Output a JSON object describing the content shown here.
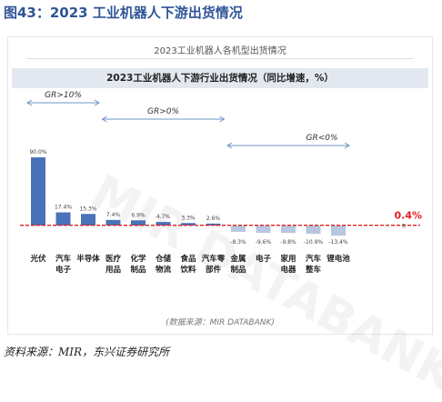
{
  "figure_title": "图43：2023 工业机器人下游出货情况",
  "card_title": "2023工业机器人各机型出货情况",
  "inner_source": "(数据来源：MIR DATABANK)",
  "watermark": "MIR DATABANK",
  "source": "资料来源：MIR，东兴证券研究所",
  "chart_data": {
    "type": "bar",
    "title": "2023工业机器人下游行业出货情况（同比增速，%）",
    "categories": [
      [
        "光伏"
      ],
      [
        "汽车",
        "电子"
      ],
      [
        "半导体"
      ],
      [
        "医疗",
        "用品"
      ],
      [
        "化学",
        "制品"
      ],
      [
        "仓储",
        "物流"
      ],
      [
        "食品",
        "饮料"
      ],
      [
        "汽车零",
        "部件"
      ],
      [
        "金属",
        "制品"
      ],
      [
        "电子"
      ],
      [
        "家用",
        "电器"
      ],
      [
        "汽车",
        "整车"
      ],
      [
        "锂电池"
      ]
    ],
    "values": [
      90.0,
      17.4,
      15.3,
      7.4,
      6.9,
      4.7,
      3.3,
      2.6,
      -8.3,
      -9.6,
      -9.8,
      -10.9,
      -13.4
    ],
    "value_labels": [
      "90.0%",
      "17.4%",
      "15.3%",
      "7.4%",
      "6.9%",
      "4.7%",
      "3.3%",
      "2.6%",
      "-8.3%",
      "-9.6%",
      "-9.8%",
      "-10.9%",
      "-13.4%"
    ],
    "reference_line": {
      "value": 0.4,
      "label": "0.4%",
      "color": "#e02020"
    },
    "ref_zero_label": "0",
    "ylim": [
      -16,
      100
    ],
    "bar_color": "#4a72b8",
    "negative_bar_color": "#b8c7e0",
    "annotations": [
      {
        "label": "GR>10%",
        "from": 0,
        "to": 2
      },
      {
        "label": "GR>0%",
        "from": 3,
        "to": 7
      },
      {
        "label": "GR<0%",
        "from": 8,
        "to": 12
      }
    ]
  }
}
